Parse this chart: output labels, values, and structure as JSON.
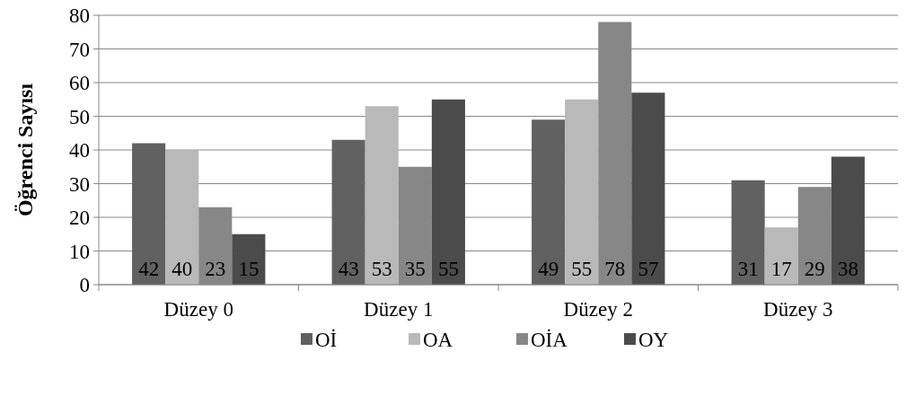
{
  "chart_data": {
    "type": "bar",
    "ylabel": "Öğrenci Sayısı",
    "categories": [
      "Düzey 0",
      "Düzey 1",
      "Düzey 2",
      "Düzey 3"
    ],
    "series": [
      {
        "name": "Oİ",
        "color": "#616161",
        "values": [
          42,
          43,
          49,
          31
        ]
      },
      {
        "name": "OA",
        "color": "#b9b9b9",
        "values": [
          40,
          53,
          55,
          17
        ]
      },
      {
        "name": "OİA",
        "color": "#878787",
        "values": [
          23,
          35,
          78,
          29
        ]
      },
      {
        "name": "OY",
        "color": "#4b4b4b",
        "values": [
          15,
          55,
          57,
          38
        ]
      }
    ],
    "ylim": [
      0,
      80
    ],
    "yticks": [
      0,
      10,
      20,
      30,
      40,
      50,
      60,
      70,
      80
    ],
    "grid": "y",
    "legend": "bottom",
    "data_labels": true
  }
}
